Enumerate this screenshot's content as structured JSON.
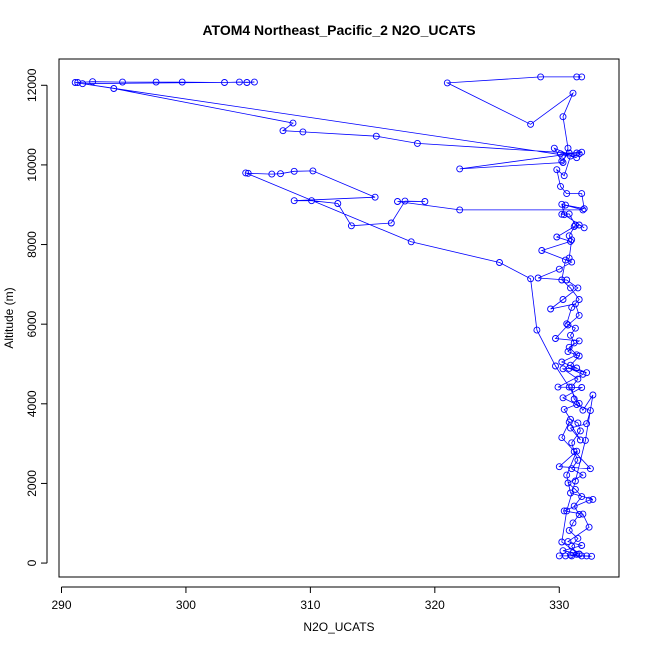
{
  "chart_data": {
    "type": "line",
    "title": "ATOM4 Northeast_Pacific_2 N2O_UCATS",
    "xlabel": "N2O_UCATS",
    "ylabel": "Altitude (m)",
    "xlim": [
      289.8,
      334.8
    ],
    "ylim": [
      -350,
      12660
    ],
    "xticks": [
      290,
      300,
      310,
      320,
      330
    ],
    "yticks": [
      0,
      2000,
      4000,
      6000,
      8000,
      10000,
      12000
    ],
    "grid": false,
    "legend": "none",
    "marker": "open-circle",
    "color": "#0000ff",
    "series": [
      {
        "points": [
          [
            331.4,
            12210
          ],
          [
            331.8,
            12210
          ],
          [
            328.5,
            12210
          ],
          [
            321.0,
            12060
          ],
          [
            327.7,
            11020
          ],
          [
            331.1,
            11800
          ],
          [
            330.3,
            11210
          ],
          [
            330.7,
            10420
          ],
          [
            330.3,
            10060
          ],
          [
            322.0,
            9900
          ],
          [
            331.4,
            10300
          ],
          [
            331.6,
            10280
          ],
          [
            331.8,
            10320
          ],
          [
            330.1,
            10280
          ],
          [
            331.4,
            10180
          ],
          [
            329.6,
            10420
          ],
          [
            330.2,
            10100
          ],
          [
            330.8,
            10300
          ],
          [
            318.6,
            10540
          ],
          [
            315.3,
            10720
          ],
          [
            309.4,
            10830
          ],
          [
            307.8,
            10860
          ],
          [
            308.6,
            11050
          ],
          [
            294.2,
            11920
          ],
          [
            291.1,
            12070
          ],
          [
            291.3,
            12070
          ],
          [
            292.5,
            12090
          ],
          [
            294.9,
            12080
          ],
          [
            297.6,
            12080
          ],
          [
            299.7,
            12080
          ],
          [
            303.1,
            12070
          ],
          [
            304.3,
            12080
          ],
          [
            304.9,
            12070
          ],
          [
            305.5,
            12080
          ],
          [
            291.7,
            12040
          ],
          [
            330.9,
            10220
          ],
          [
            330.4,
            9730
          ],
          [
            329.8,
            9880
          ],
          [
            330.1,
            9460
          ],
          [
            330.6,
            9280
          ],
          [
            331.8,
            9280
          ],
          [
            332.0,
            8900
          ],
          [
            330.5,
            8990
          ],
          [
            330.2,
            8760
          ],
          [
            330.8,
            8770
          ],
          [
            331.3,
            8490
          ],
          [
            330.8,
            8220
          ],
          [
            331.0,
            8120
          ],
          [
            330.8,
            7660
          ],
          [
            330.5,
            7610
          ],
          [
            330.2,
            7110
          ],
          [
            330.9,
            6910
          ],
          [
            331.6,
            6620
          ],
          [
            331.0,
            6420
          ],
          [
            330.6,
            6010
          ],
          [
            331.3,
            5900
          ],
          [
            330.9,
            5720
          ],
          [
            331.2,
            5530
          ],
          [
            330.7,
            5310
          ],
          [
            331.6,
            5200
          ],
          [
            330.9,
            4970
          ],
          [
            331.4,
            4900
          ],
          [
            330.3,
            4880
          ],
          [
            331.5,
            4620
          ],
          [
            331.0,
            4420
          ],
          [
            331.2,
            4120
          ],
          [
            331.6,
            4010
          ],
          [
            330.4,
            3860
          ],
          [
            330.9,
            3610
          ],
          [
            331.5,
            3520
          ],
          [
            331.7,
            3320
          ],
          [
            331.0,
            3020
          ],
          [
            331.2,
            2800
          ],
          [
            331.5,
            2580
          ],
          [
            331.0,
            2370
          ],
          [
            331.9,
            2210
          ],
          [
            330.7,
            2010
          ],
          [
            331.3,
            1850
          ],
          [
            331.8,
            1670
          ],
          [
            331.2,
            1430
          ],
          [
            331.6,
            1220
          ],
          [
            331.1,
            1010
          ],
          [
            330.8,
            820
          ],
          [
            331.5,
            620
          ],
          [
            331.0,
            420
          ],
          [
            331.4,
            220
          ],
          [
            331.0,
            180
          ],
          [
            330.5,
            180
          ],
          [
            330.0,
            180
          ],
          [
            332.2,
            180
          ],
          [
            332.6,
            170
          ],
          [
            331.8,
            180
          ],
          [
            330.9,
            200
          ],
          [
            331.6,
            230
          ],
          [
            331.1,
            260
          ],
          [
            330.3,
            310
          ],
          [
            331.8,
            440
          ],
          [
            330.7,
            540
          ],
          [
            332.4,
            900
          ],
          [
            331.9,
            1230
          ],
          [
            330.4,
            1310
          ],
          [
            332.4,
            1580
          ],
          [
            332.7,
            1600
          ],
          [
            330.9,
            1760
          ],
          [
            330.6,
            2210
          ],
          [
            331.4,
            2810
          ],
          [
            330.0,
            2420
          ],
          [
            332.5,
            2370
          ],
          [
            330.2,
            3150
          ],
          [
            330.8,
            3540
          ],
          [
            331.7,
            3090
          ],
          [
            330.9,
            3390
          ],
          [
            332.2,
            3500
          ],
          [
            332.5,
            3830
          ],
          [
            331.4,
            3980
          ],
          [
            330.3,
            4150
          ],
          [
            331.8,
            4410
          ],
          [
            329.9,
            4420
          ],
          [
            331.9,
            4740
          ],
          [
            330.8,
            4890
          ],
          [
            332.2,
            4780
          ],
          [
            330.2,
            5050
          ],
          [
            331.4,
            5230
          ],
          [
            330.8,
            5420
          ],
          [
            331.6,
            5580
          ],
          [
            329.7,
            5640
          ],
          [
            330.7,
            5980
          ],
          [
            331.6,
            6220
          ],
          [
            331.3,
            6510
          ],
          [
            329.3,
            6380
          ],
          [
            330.3,
            6620
          ],
          [
            331.5,
            6910
          ],
          [
            330.6,
            7110
          ],
          [
            328.3,
            7160
          ],
          [
            330.0,
            7380
          ],
          [
            331.0,
            7560
          ],
          [
            328.6,
            7850
          ],
          [
            330.9,
            8080
          ],
          [
            329.8,
            8190
          ],
          [
            331.2,
            8450
          ],
          [
            331.6,
            8490
          ],
          [
            332.0,
            8420
          ],
          [
            330.4,
            8750
          ],
          [
            330.2,
            9010
          ],
          [
            331.9,
            8870
          ],
          [
            322.0,
            8870
          ],
          [
            317.0,
            9080
          ],
          [
            319.2,
            9080
          ],
          [
            317.6,
            9090
          ],
          [
            316.5,
            8540
          ],
          [
            313.3,
            8470
          ],
          [
            312.2,
            9030
          ],
          [
            310.1,
            9100
          ],
          [
            308.7,
            9100
          ],
          [
            315.2,
            9190
          ],
          [
            310.2,
            9850
          ],
          [
            308.7,
            9840
          ],
          [
            307.6,
            9780
          ],
          [
            306.9,
            9770
          ],
          [
            305.0,
            9790
          ],
          [
            304.8,
            9800
          ],
          [
            318.1,
            8070
          ],
          [
            325.2,
            7550
          ],
          [
            327.7,
            7140
          ],
          [
            328.2,
            5850
          ],
          [
            329.7,
            4950
          ],
          [
            330.8,
            4420
          ],
          [
            331.9,
            3840
          ],
          [
            332.7,
            4220
          ],
          [
            332.1,
            3080
          ],
          [
            331.3,
            2060
          ],
          [
            330.6,
            1310
          ],
          [
            330.2,
            530
          ],
          [
            331.6,
            220
          ]
        ]
      }
    ]
  }
}
